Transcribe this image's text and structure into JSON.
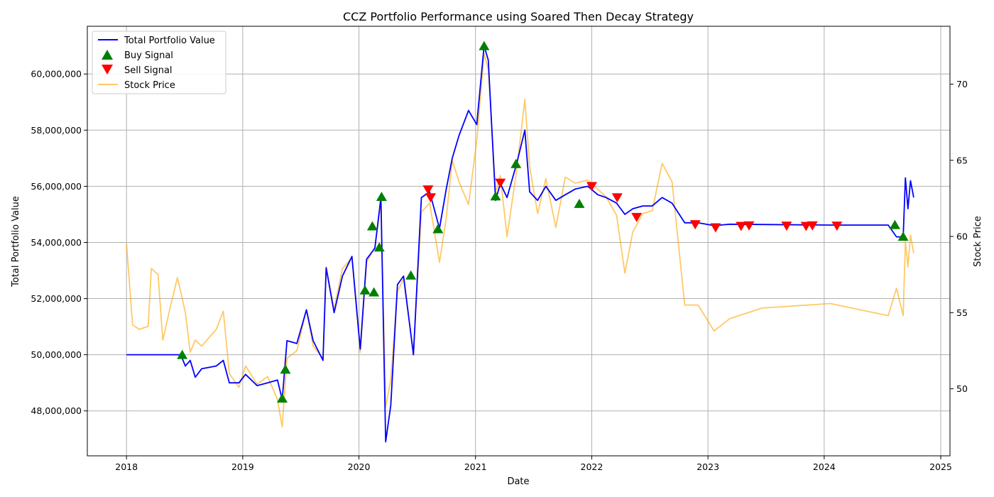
{
  "chart_data": {
    "type": "line",
    "title": "CCZ Portfolio Performance using Soared Then Decay Strategy",
    "xlabel": "Date",
    "ylabel": "Total Portfolio Value",
    "y2label": "Stock Price",
    "xlim": [
      "2017-08-31",
      "2025-01-30"
    ],
    "ylim": [
      46400000,
      61700000
    ],
    "y2lim": [
      45.6,
      73.8
    ],
    "x_ticks": [
      "2018",
      "2019",
      "2020",
      "2021",
      "2022",
      "2023",
      "2024",
      "2025"
    ],
    "y_ticks": [
      "48,000,000",
      "50,000,000",
      "52,000,000",
      "54,000,000",
      "56,000,000",
      "58,000,000",
      "60,000,000"
    ],
    "y2_ticks": [
      "50",
      "55",
      "60",
      "65",
      "70"
    ],
    "grid": true,
    "legend_position": "top-left",
    "colors": {
      "portfolio": "#0000ff",
      "stock": "#ffa500",
      "buy": "#008000",
      "sell": "#ff0000"
    },
    "series": [
      {
        "name": "Total Portfolio Value",
        "axis": "left",
        "points": [
          [
            "2018-01-01",
            50000000
          ],
          [
            "2018-06-20",
            50000000
          ],
          [
            "2018-07-05",
            49600000
          ],
          [
            "2018-07-20",
            49800000
          ],
          [
            "2018-08-05",
            49200000
          ],
          [
            "2018-08-25",
            49500000
          ],
          [
            "2018-10-10",
            49600000
          ],
          [
            "2018-11-01",
            49800000
          ],
          [
            "2018-11-20",
            49000000
          ],
          [
            "2018-12-20",
            49000000
          ],
          [
            "2019-01-10",
            49300000
          ],
          [
            "2019-02-15",
            48900000
          ],
          [
            "2019-03-20",
            49000000
          ],
          [
            "2019-04-20",
            49100000
          ],
          [
            "2019-05-05",
            48400000
          ],
          [
            "2019-05-20",
            50500000
          ],
          [
            "2019-06-20",
            50400000
          ],
          [
            "2019-07-20",
            51600000
          ],
          [
            "2019-08-10",
            50500000
          ],
          [
            "2019-09-10",
            49800000
          ],
          [
            "2019-09-20",
            53100000
          ],
          [
            "2019-10-15",
            51500000
          ],
          [
            "2019-11-10",
            52800000
          ],
          [
            "2019-12-10",
            53500000
          ],
          [
            "2020-01-05",
            50200000
          ],
          [
            "2020-01-25",
            53400000
          ],
          [
            "2020-02-20",
            53800000
          ],
          [
            "2020-03-10",
            55600000
          ],
          [
            "2020-03-25",
            46900000
          ],
          [
            "2020-04-10",
            48200000
          ],
          [
            "2020-05-01",
            52500000
          ],
          [
            "2020-05-20",
            52800000
          ],
          [
            "2020-06-20",
            50000000
          ],
          [
            "2020-07-15",
            55600000
          ],
          [
            "2020-08-10",
            55800000
          ],
          [
            "2020-09-10",
            54500000
          ],
          [
            "2020-10-01",
            55900000
          ],
          [
            "2020-10-20",
            57000000
          ],
          [
            "2020-11-10",
            57800000
          ],
          [
            "2020-12-10",
            58700000
          ],
          [
            "2021-01-05",
            58200000
          ],
          [
            "2021-01-28",
            61000000
          ],
          [
            "2021-02-10",
            60500000
          ],
          [
            "2021-03-05",
            55500000
          ],
          [
            "2021-03-20",
            56100000
          ],
          [
            "2021-04-10",
            55600000
          ],
          [
            "2021-05-10",
            56800000
          ],
          [
            "2021-06-05",
            58000000
          ],
          [
            "2021-06-20",
            55800000
          ],
          [
            "2021-07-15",
            55500000
          ],
          [
            "2021-08-10",
            56000000
          ],
          [
            "2021-09-10",
            55500000
          ],
          [
            "2021-10-10",
            55700000
          ],
          [
            "2021-11-10",
            55900000
          ],
          [
            "2021-12-20",
            56000000
          ],
          [
            "2022-01-20",
            55700000
          ],
          [
            "2022-02-15",
            55600000
          ],
          [
            "2022-03-20",
            55400000
          ],
          [
            "2022-04-15",
            55000000
          ],
          [
            "2022-05-10",
            55200000
          ],
          [
            "2022-06-10",
            55300000
          ],
          [
            "2022-07-10",
            55300000
          ],
          [
            "2022-08-10",
            55600000
          ],
          [
            "2022-09-10",
            55400000
          ],
          [
            "2022-10-20",
            54700000
          ],
          [
            "2022-12-01",
            54700000
          ],
          [
            "2023-01-20",
            54600000
          ],
          [
            "2023-03-10",
            54650000
          ],
          [
            "2023-06-20",
            54640000
          ],
          [
            "2024-01-20",
            54620000
          ],
          [
            "2024-07-20",
            54620000
          ],
          [
            "2024-08-15",
            54200000
          ],
          [
            "2024-09-05",
            54200000
          ],
          [
            "2024-09-12",
            56300000
          ],
          [
            "2024-09-20",
            55200000
          ],
          [
            "2024-09-28",
            56200000
          ],
          [
            "2024-10-08",
            55600000
          ]
        ]
      },
      {
        "name": "Stock Price",
        "axis": "right",
        "points": [
          [
            "2018-01-01",
            59.5
          ],
          [
            "2018-01-20",
            54.2
          ],
          [
            "2018-02-10",
            53.9
          ],
          [
            "2018-03-10",
            54.1
          ],
          [
            "2018-03-20",
            57.9
          ],
          [
            "2018-04-10",
            57.5
          ],
          [
            "2018-04-25",
            53.2
          ],
          [
            "2018-05-20",
            55.5
          ],
          [
            "2018-06-10",
            57.3
          ],
          [
            "2018-06-20",
            56.4
          ],
          [
            "2018-07-05",
            55.0
          ],
          [
            "2018-07-20",
            52.4
          ],
          [
            "2018-08-05",
            53.2
          ],
          [
            "2018-08-25",
            52.8
          ],
          [
            "2018-10-10",
            53.9
          ],
          [
            "2018-11-01",
            55.1
          ],
          [
            "2018-11-20",
            51.0
          ],
          [
            "2018-12-20",
            50.1
          ],
          [
            "2019-01-10",
            51.5
          ],
          [
            "2019-02-15",
            50.3
          ],
          [
            "2019-03-20",
            50.8
          ],
          [
            "2019-04-20",
            49.3
          ],
          [
            "2019-05-05",
            47.5
          ],
          [
            "2019-05-20",
            52.0
          ],
          [
            "2019-06-20",
            52.5
          ],
          [
            "2019-07-20",
            55.2
          ],
          [
            "2019-08-10",
            52.8
          ],
          [
            "2019-09-10",
            52.0
          ],
          [
            "2019-09-20",
            58.0
          ],
          [
            "2019-10-15",
            55.2
          ],
          [
            "2019-11-10",
            57.9
          ],
          [
            "2019-12-10",
            58.6
          ],
          [
            "2020-01-05",
            52.4
          ],
          [
            "2020-01-25",
            58.3
          ],
          [
            "2020-02-20",
            59.3
          ],
          [
            "2020-03-10",
            62.2
          ],
          [
            "2020-03-25",
            48.8
          ],
          [
            "2020-04-10",
            50.6
          ],
          [
            "2020-05-01",
            56.4
          ],
          [
            "2020-05-20",
            57.2
          ],
          [
            "2020-06-20",
            52.4
          ],
          [
            "2020-07-15",
            61.6
          ],
          [
            "2020-08-10",
            62.2
          ],
          [
            "2020-09-10",
            58.3
          ],
          [
            "2020-10-01",
            61.2
          ],
          [
            "2020-10-20",
            65.0
          ],
          [
            "2020-11-10",
            63.6
          ],
          [
            "2020-12-10",
            62.1
          ],
          [
            "2021-01-05",
            66.3
          ],
          [
            "2021-01-28",
            72.0
          ],
          [
            "2021-02-10",
            71.0
          ],
          [
            "2021-03-05",
            62.9
          ],
          [
            "2021-03-20",
            64.0
          ],
          [
            "2021-04-10",
            60.0
          ],
          [
            "2021-05-10",
            64.3
          ],
          [
            "2021-06-05",
            69.0
          ],
          [
            "2021-06-20",
            64.6
          ],
          [
            "2021-07-15",
            61.5
          ],
          [
            "2021-08-10",
            63.8
          ],
          [
            "2021-09-10",
            60.6
          ],
          [
            "2021-10-10",
            63.9
          ],
          [
            "2021-11-10",
            63.5
          ],
          [
            "2021-12-20",
            63.7
          ],
          [
            "2022-01-20",
            63.1
          ],
          [
            "2022-02-15",
            62.6
          ],
          [
            "2022-03-20",
            61.4
          ],
          [
            "2022-04-15",
            57.6
          ],
          [
            "2022-05-10",
            60.3
          ],
          [
            "2022-06-10",
            61.5
          ],
          [
            "2022-07-10",
            61.7
          ],
          [
            "2022-08-10",
            64.8
          ],
          [
            "2022-09-10",
            63.6
          ],
          [
            "2022-10-20",
            55.5
          ],
          [
            "2022-12-01",
            55.5
          ],
          [
            "2023-01-20",
            53.8
          ],
          [
            "2023-03-10",
            54.6
          ],
          [
            "2023-06-20",
            55.3
          ],
          [
            "2024-01-20",
            55.6
          ],
          [
            "2024-07-20",
            54.8
          ],
          [
            "2024-08-15",
            56.6
          ],
          [
            "2024-09-05",
            54.8
          ],
          [
            "2024-09-12",
            59.7
          ],
          [
            "2024-09-20",
            58.0
          ],
          [
            "2024-09-28",
            60.1
          ],
          [
            "2024-10-08",
            58.9
          ]
        ]
      }
    ],
    "buy_signals": {
      "name": "Buy Signal",
      "points": [
        [
          "2018-06-25",
          50000000
        ],
        [
          "2019-05-05",
          48450000
        ],
        [
          "2019-05-15",
          49480000
        ],
        [
          "2020-01-20",
          52300000
        ],
        [
          "2020-02-12",
          54580000
        ],
        [
          "2020-02-17",
          52230000
        ],
        [
          "2020-03-05",
          53830000
        ],
        [
          "2020-03-12",
          55630000
        ],
        [
          "2020-06-12",
          52830000
        ],
        [
          "2020-09-05",
          54480000
        ],
        [
          "2021-01-28",
          61000000
        ],
        [
          "2021-03-05",
          55650000
        ],
        [
          "2021-05-08",
          56800000
        ],
        [
          "2021-11-23",
          55380000
        ],
        [
          "2024-08-10",
          54630000
        ],
        [
          "2024-09-05",
          54210000
        ]
      ]
    },
    "sell_signals": {
      "name": "Sell Signal",
      "points": [
        [
          "2020-08-05",
          55880000
        ],
        [
          "2020-08-13",
          55600000
        ],
        [
          "2021-03-20",
          56120000
        ],
        [
          "2022-01-01",
          56000000
        ],
        [
          "2022-03-22",
          55600000
        ],
        [
          "2022-05-22",
          54900000
        ],
        [
          "2022-11-22",
          54640000
        ],
        [
          "2023-01-25",
          54530000
        ],
        [
          "2023-04-15",
          54580000
        ],
        [
          "2023-05-10",
          54600000
        ],
        [
          "2023-09-05",
          54590000
        ],
        [
          "2023-11-05",
          54580000
        ],
        [
          "2023-11-25",
          54600000
        ],
        [
          "2024-02-10",
          54590000
        ]
      ]
    }
  }
}
